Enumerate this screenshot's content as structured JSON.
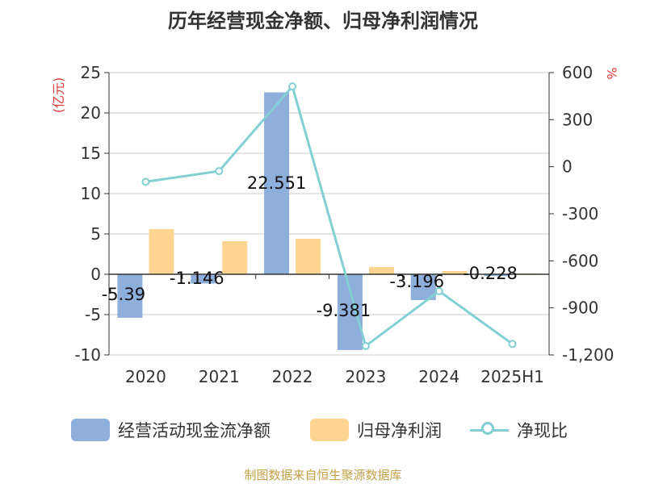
{
  "title": "历年经营现金净额、归母净利润情况",
  "source": "制图数据来自恒生聚源数据库",
  "chart_data": {
    "type": "bar",
    "categories": [
      "2020",
      "2021",
      "2022",
      "2023",
      "2024",
      "2025H1"
    ],
    "series": [
      {
        "name": "经营活动现金流净额",
        "type": "bar",
        "axis": "left",
        "color": "#8eaedb",
        "values": [
          -5.39,
          -1.146,
          22.551,
          -9.381,
          -3.196,
          -0.228
        ],
        "labels": [
          "-5.39",
          "-1.146",
          "22.551",
          "-9.381",
          "-3.196",
          "-0.228"
        ]
      },
      {
        "name": "归母净利润",
        "type": "bar",
        "axis": "left",
        "color": "#fdd591",
        "values": [
          5.6,
          4.1,
          4.4,
          0.9,
          0.4,
          0.1
        ]
      },
      {
        "name": "净现比",
        "type": "line",
        "axis": "right",
        "color": "#82d0d4",
        "values": [
          -96,
          -28,
          512,
          -1143,
          -793,
          -1130
        ]
      }
    ],
    "y_left": {
      "label": "(亿元)",
      "min": -10,
      "max": 25,
      "ticks": [
        25,
        20,
        15,
        10,
        5,
        0,
        -5,
        -10
      ],
      "tick_labels": [
        "25",
        "20",
        "15",
        "10",
        "5",
        "0",
        "-5",
        "-10"
      ]
    },
    "y_right": {
      "label": "%",
      "min": -1200,
      "max": 600,
      "ticks": [
        600,
        300,
        0,
        -300,
        -600,
        -900,
        -1200
      ],
      "tick_labels": [
        "600",
        "300",
        "0",
        "-300",
        "-600",
        "-900",
        "-1,200"
      ]
    },
    "grid": true,
    "legend_position": "bottom"
  },
  "legend": [
    {
      "label": "经营活动现金流净额",
      "kind": "bar",
      "color": "#8eaedb"
    },
    {
      "label": "归母净利润",
      "kind": "bar",
      "color": "#fdd591"
    },
    {
      "label": "净现比",
      "kind": "line",
      "color": "#82d0d4"
    }
  ]
}
